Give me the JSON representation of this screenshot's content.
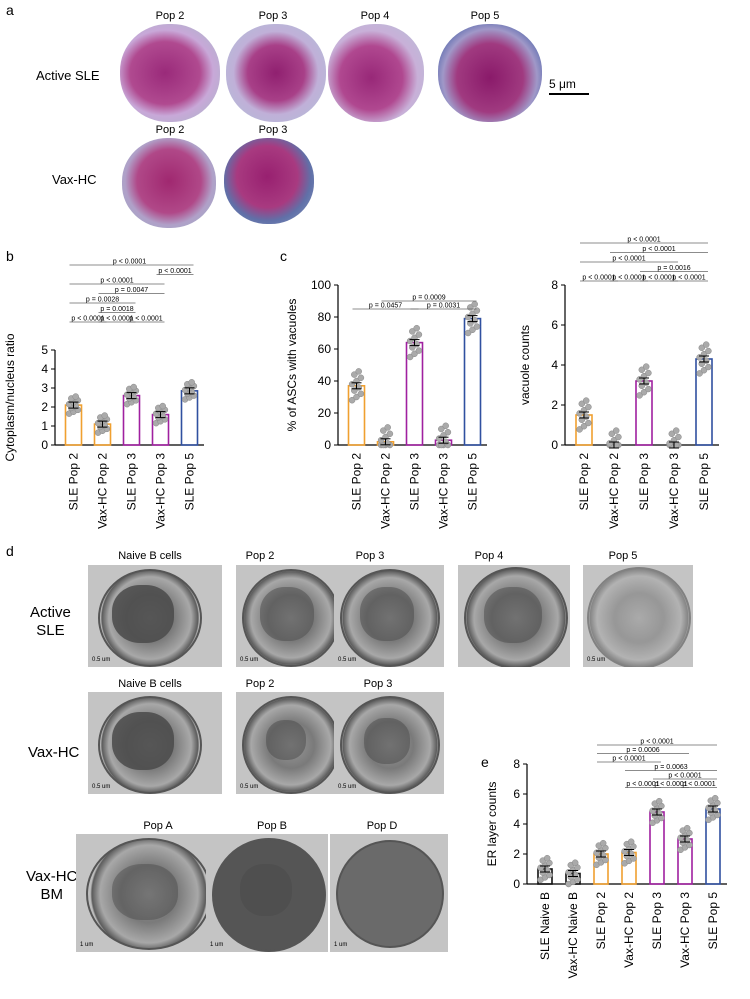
{
  "panels": {
    "a": {
      "letter": "a",
      "row_labels": [
        "Active SLE",
        "Vax-HC"
      ],
      "row1_pops": [
        "Pop 2",
        "Pop 3",
        "Pop 4",
        "Pop 5"
      ],
      "row2_pops": [
        "Pop 2",
        "Pop 3"
      ],
      "scalebar": "5 μm"
    },
    "b": {
      "letter": "b"
    },
    "c": {
      "letter": "c"
    },
    "d": {
      "letter": "d",
      "row_labels": [
        "Active\nSLE",
        "Vax-HC",
        "Vax-HC\nBM"
      ],
      "row1_titles": [
        "Naive B cells",
        "Pop 2",
        "Pop 3",
        "Pop 4",
        "Pop 5"
      ],
      "row2_titles": [
        "Naive B cells",
        "Pop 2",
        "Pop 3"
      ],
      "row3_titles": [
        "Pop A",
        "Pop B",
        "Pop D"
      ],
      "row1_scale": "0.5 um",
      "row3_scale": "1 um"
    },
    "e": {
      "letter": "e"
    }
  },
  "chart_data": [
    {
      "id": "b",
      "type": "bar",
      "ylabel": "Cytoplasm/nucleus ratio",
      "ylim": [
        0,
        5
      ],
      "yticks": [
        0,
        1,
        2,
        3,
        4,
        5
      ],
      "categories": [
        "SLE Pop 2",
        "Vax-HC Pop 2",
        "SLE Pop 3",
        "Vax-HC Pop 3",
        "SLE Pop 5"
      ],
      "values": [
        2.1,
        1.1,
        2.6,
        1.6,
        2.85
      ],
      "colors": [
        "#f0a030",
        "#f0a030",
        "#a020a0",
        "#a020a0",
        "#3050a0"
      ],
      "comparisons": [
        {
          "from": 0,
          "to": 4,
          "label": "p < 0.0001"
        },
        {
          "from": 3,
          "to": 4,
          "label": "p < 0.0001"
        },
        {
          "from": 0,
          "to": 3,
          "label": "p < 0.0001"
        },
        {
          "from": 1,
          "to": 3,
          "label": "p = 0.0047"
        },
        {
          "from": 0,
          "to": 2,
          "label": "p = 0.0028"
        },
        {
          "from": 1,
          "to": 2,
          "label": "p = 0.0018"
        },
        {
          "from": 0,
          "to": 1,
          "label": "p < 0.0001"
        },
        {
          "from": 1,
          "to": 2,
          "label": "p < 0.0001"
        },
        {
          "from": 2,
          "to": 3,
          "label": "p < 0.0001"
        }
      ]
    },
    {
      "id": "c1",
      "type": "bar",
      "ylabel": "% of ASCs with vacuoles",
      "ylim": [
        0,
        100
      ],
      "yticks": [
        0,
        20,
        40,
        60,
        80,
        100
      ],
      "categories": [
        "SLE Pop 2",
        "Vax-HC Pop 2",
        "SLE Pop 3",
        "Vax-HC Pop 3",
        "SLE Pop 5"
      ],
      "values": [
        37,
        2,
        64,
        3,
        79
      ],
      "colors": [
        "#f0a030",
        "#f0a030",
        "#a020a0",
        "#a020a0",
        "#3050a0"
      ],
      "comparisons": [
        {
          "from": 1,
          "to": 4,
          "label": "p = 0.0009"
        },
        {
          "from": 0,
          "to": 2,
          "label": "p = 0.0457"
        },
        {
          "from": 2,
          "to": 4,
          "label": "p = 0.0031"
        }
      ]
    },
    {
      "id": "c2",
      "type": "bar",
      "ylabel": "vacuole counts",
      "ylim": [
        0,
        8
      ],
      "yticks": [
        0,
        2,
        4,
        6,
        8
      ],
      "categories": [
        "SLE Pop 2",
        "Vax-HC Pop 2",
        "SLE Pop 3",
        "Vax-HC Pop 3",
        "SLE Pop 5"
      ],
      "values": [
        1.5,
        0,
        3.2,
        0,
        4.3
      ],
      "colors": [
        "#f0a030",
        "#f0a030",
        "#a020a0",
        "#a020a0",
        "#3050a0"
      ],
      "comparisons": [
        {
          "from": 0,
          "to": 4,
          "label": "p < 0.0001"
        },
        {
          "from": 1,
          "to": 4,
          "label": "p < 0.0001"
        },
        {
          "from": 0,
          "to": 3,
          "label": "p < 0.0001"
        },
        {
          "from": 2,
          "to": 4,
          "label": "p = 0.0016"
        },
        {
          "from": 0,
          "to": 1,
          "label": "p < 0.0001"
        },
        {
          "from": 1,
          "to": 2,
          "label": "p < 0.0001"
        },
        {
          "from": 2,
          "to": 3,
          "label": "p < 0.0001"
        },
        {
          "from": 3,
          "to": 4,
          "label": "p < 0.0001"
        }
      ]
    },
    {
      "id": "e",
      "type": "bar",
      "ylabel": "ER layer counts",
      "ylim": [
        0,
        8
      ],
      "yticks": [
        0,
        2,
        4,
        6,
        8
      ],
      "categories": [
        "SLE Naive B",
        "Vax-HC Naive B",
        "SLE Pop 2",
        "Vax-HC Pop 2",
        "SLE Pop 3",
        "Vax-HC Pop 3",
        "SLE Pop 5"
      ],
      "values": [
        1.0,
        0.7,
        2.0,
        2.1,
        4.8,
        3.0,
        5.0
      ],
      "colors": [
        "#111111",
        "#111111",
        "#f0a030",
        "#f0a030",
        "#a020a0",
        "#a020a0",
        "#3050a0"
      ],
      "comparisons": [
        {
          "from": 2,
          "to": 6,
          "label": "p < 0.0001"
        },
        {
          "from": 2,
          "to": 5,
          "label": "p = 0.0006"
        },
        {
          "from": 2,
          "to": 4,
          "label": "p < 0.0001"
        },
        {
          "from": 3,
          "to": 6,
          "label": "p = 0.0063"
        },
        {
          "from": 4,
          "to": 6,
          "label": "p < 0.0001"
        },
        {
          "from": 3,
          "to": 4,
          "label": "p < 0.0001"
        },
        {
          "from": 4,
          "to": 5,
          "label": "p < 0.0001"
        },
        {
          "from": 5,
          "to": 6,
          "label": "p < 0.0001"
        }
      ]
    }
  ]
}
